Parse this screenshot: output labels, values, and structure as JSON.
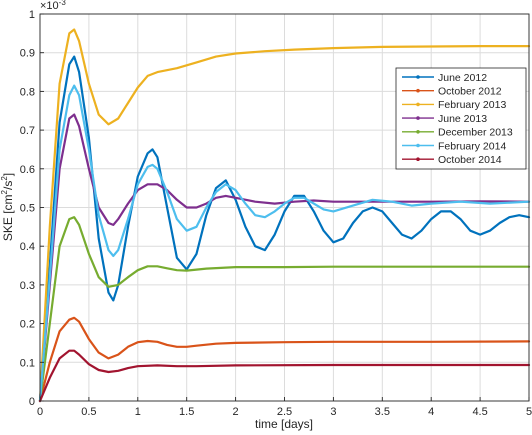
{
  "chart_data": {
    "type": "line",
    "xlabel": "time [days]",
    "ylabel_main": "SKE [cm",
    "ylabel_sup1": "2",
    "ylabel_mid": "/s",
    "ylabel_sup2": "2",
    "ylabel_end": "]",
    "y_multiplier": "×10",
    "y_multiplier_exp": "-3",
    "xlim": [
      0,
      5
    ],
    "ylim": [
      0,
      1
    ],
    "x_ticks": [
      "0",
      "0.5",
      "1",
      "1.5",
      "2",
      "2.5",
      "3",
      "3.5",
      "4",
      "4.5",
      "5"
    ],
    "y_ticks": [
      "0",
      "0.1",
      "0.2",
      "0.3",
      "0.4",
      "0.5",
      "0.6",
      "0.7",
      "0.8",
      "0.9",
      "1"
    ],
    "grid": true,
    "legend_position": "top-right",
    "series": [
      {
        "name": "June 2012",
        "color": "#0072BD",
        "points": [
          [
            0,
            0
          ],
          [
            0.1,
            0.35
          ],
          [
            0.2,
            0.72
          ],
          [
            0.3,
            0.87
          ],
          [
            0.35,
            0.89
          ],
          [
            0.4,
            0.85
          ],
          [
            0.5,
            0.68
          ],
          [
            0.6,
            0.42
          ],
          [
            0.7,
            0.28
          ],
          [
            0.75,
            0.26
          ],
          [
            0.8,
            0.3
          ],
          [
            0.9,
            0.45
          ],
          [
            1.0,
            0.58
          ],
          [
            1.1,
            0.64
          ],
          [
            1.15,
            0.65
          ],
          [
            1.2,
            0.63
          ],
          [
            1.3,
            0.5
          ],
          [
            1.4,
            0.37
          ],
          [
            1.5,
            0.34
          ],
          [
            1.6,
            0.38
          ],
          [
            1.7,
            0.48
          ],
          [
            1.8,
            0.55
          ],
          [
            1.9,
            0.57
          ],
          [
            2.0,
            0.52
          ],
          [
            2.1,
            0.45
          ],
          [
            2.2,
            0.4
          ],
          [
            2.3,
            0.39
          ],
          [
            2.4,
            0.43
          ],
          [
            2.5,
            0.49
          ],
          [
            2.6,
            0.53
          ],
          [
            2.7,
            0.53
          ],
          [
            2.8,
            0.49
          ],
          [
            2.9,
            0.44
          ],
          [
            3.0,
            0.41
          ],
          [
            3.1,
            0.42
          ],
          [
            3.2,
            0.46
          ],
          [
            3.3,
            0.49
          ],
          [
            3.4,
            0.5
          ],
          [
            3.5,
            0.49
          ],
          [
            3.6,
            0.46
          ],
          [
            3.7,
            0.43
          ],
          [
            3.8,
            0.42
          ],
          [
            3.9,
            0.44
          ],
          [
            4.0,
            0.47
          ],
          [
            4.1,
            0.49
          ],
          [
            4.2,
            0.49
          ],
          [
            4.3,
            0.47
          ],
          [
            4.4,
            0.44
          ],
          [
            4.5,
            0.43
          ],
          [
            4.6,
            0.44
          ],
          [
            4.7,
            0.46
          ],
          [
            4.8,
            0.475
          ],
          [
            4.9,
            0.48
          ],
          [
            5.0,
            0.475
          ]
        ]
      },
      {
        "name": "October 2012",
        "color": "#D95319",
        "points": [
          [
            0,
            0
          ],
          [
            0.1,
            0.1
          ],
          [
            0.2,
            0.18
          ],
          [
            0.3,
            0.21
          ],
          [
            0.35,
            0.215
          ],
          [
            0.4,
            0.205
          ],
          [
            0.5,
            0.16
          ],
          [
            0.6,
            0.125
          ],
          [
            0.7,
            0.11
          ],
          [
            0.8,
            0.12
          ],
          [
            0.9,
            0.14
          ],
          [
            1.0,
            0.152
          ],
          [
            1.1,
            0.155
          ],
          [
            1.2,
            0.153
          ],
          [
            1.3,
            0.145
          ],
          [
            1.4,
            0.14
          ],
          [
            1.5,
            0.14
          ],
          [
            1.6,
            0.143
          ],
          [
            1.8,
            0.148
          ],
          [
            2.0,
            0.15
          ],
          [
            2.5,
            0.152
          ],
          [
            3.0,
            0.153
          ],
          [
            4.0,
            0.153
          ],
          [
            5.0,
            0.154
          ]
        ]
      },
      {
        "name": "February 2013",
        "color": "#EDB120",
        "points": [
          [
            0,
            0
          ],
          [
            0.1,
            0.45
          ],
          [
            0.2,
            0.82
          ],
          [
            0.3,
            0.95
          ],
          [
            0.35,
            0.96
          ],
          [
            0.4,
            0.93
          ],
          [
            0.5,
            0.82
          ],
          [
            0.6,
            0.74
          ],
          [
            0.7,
            0.715
          ],
          [
            0.8,
            0.73
          ],
          [
            0.9,
            0.77
          ],
          [
            1.0,
            0.81
          ],
          [
            1.1,
            0.84
          ],
          [
            1.2,
            0.85
          ],
          [
            1.4,
            0.86
          ],
          [
            1.6,
            0.875
          ],
          [
            1.8,
            0.89
          ],
          [
            2.0,
            0.898
          ],
          [
            2.3,
            0.904
          ],
          [
            2.6,
            0.908
          ],
          [
            3.0,
            0.912
          ],
          [
            3.5,
            0.915
          ],
          [
            4.0,
            0.916
          ],
          [
            4.5,
            0.917
          ],
          [
            5.0,
            0.917
          ]
        ]
      },
      {
        "name": "June 2013",
        "color": "#7E2F8E",
        "points": [
          [
            0,
            0
          ],
          [
            0.1,
            0.3
          ],
          [
            0.2,
            0.6
          ],
          [
            0.3,
            0.73
          ],
          [
            0.35,
            0.74
          ],
          [
            0.4,
            0.71
          ],
          [
            0.5,
            0.6
          ],
          [
            0.6,
            0.5
          ],
          [
            0.7,
            0.46
          ],
          [
            0.75,
            0.455
          ],
          [
            0.8,
            0.47
          ],
          [
            0.9,
            0.51
          ],
          [
            1.0,
            0.545
          ],
          [
            1.1,
            0.56
          ],
          [
            1.2,
            0.56
          ],
          [
            1.3,
            0.545
          ],
          [
            1.4,
            0.52
          ],
          [
            1.5,
            0.5
          ],
          [
            1.6,
            0.5
          ],
          [
            1.7,
            0.51
          ],
          [
            1.8,
            0.525
          ],
          [
            1.9,
            0.53
          ],
          [
            2.0,
            0.525
          ],
          [
            2.2,
            0.515
          ],
          [
            2.4,
            0.51
          ],
          [
            2.6,
            0.515
          ],
          [
            2.8,
            0.518
          ],
          [
            3.0,
            0.515
          ],
          [
            3.5,
            0.515
          ],
          [
            4.0,
            0.515
          ],
          [
            4.5,
            0.516
          ],
          [
            5.0,
            0.515
          ]
        ]
      },
      {
        "name": "December 2013",
        "color": "#77AC30",
        "points": [
          [
            0,
            0
          ],
          [
            0.1,
            0.2
          ],
          [
            0.2,
            0.4
          ],
          [
            0.3,
            0.47
          ],
          [
            0.35,
            0.475
          ],
          [
            0.4,
            0.455
          ],
          [
            0.5,
            0.38
          ],
          [
            0.6,
            0.32
          ],
          [
            0.7,
            0.295
          ],
          [
            0.8,
            0.3
          ],
          [
            0.9,
            0.32
          ],
          [
            1.0,
            0.338
          ],
          [
            1.1,
            0.348
          ],
          [
            1.2,
            0.348
          ],
          [
            1.3,
            0.343
          ],
          [
            1.4,
            0.338
          ],
          [
            1.5,
            0.337
          ],
          [
            1.7,
            0.342
          ],
          [
            2.0,
            0.346
          ],
          [
            2.5,
            0.346
          ],
          [
            3.0,
            0.347
          ],
          [
            4.0,
            0.347
          ],
          [
            5.0,
            0.347
          ]
        ]
      },
      {
        "name": "February 2014",
        "color": "#4DBEEE",
        "points": [
          [
            0,
            0
          ],
          [
            0.1,
            0.32
          ],
          [
            0.2,
            0.65
          ],
          [
            0.3,
            0.79
          ],
          [
            0.35,
            0.815
          ],
          [
            0.4,
            0.79
          ],
          [
            0.5,
            0.65
          ],
          [
            0.6,
            0.48
          ],
          [
            0.7,
            0.39
          ],
          [
            0.75,
            0.375
          ],
          [
            0.8,
            0.39
          ],
          [
            0.9,
            0.47
          ],
          [
            1.0,
            0.56
          ],
          [
            1.1,
            0.605
          ],
          [
            1.15,
            0.61
          ],
          [
            1.2,
            0.6
          ],
          [
            1.3,
            0.54
          ],
          [
            1.4,
            0.47
          ],
          [
            1.5,
            0.44
          ],
          [
            1.6,
            0.45
          ],
          [
            1.7,
            0.5
          ],
          [
            1.8,
            0.54
          ],
          [
            1.9,
            0.56
          ],
          [
            2.0,
            0.545
          ],
          [
            2.1,
            0.51
          ],
          [
            2.2,
            0.48
          ],
          [
            2.3,
            0.475
          ],
          [
            2.4,
            0.49
          ],
          [
            2.5,
            0.51
          ],
          [
            2.6,
            0.525
          ],
          [
            2.7,
            0.525
          ],
          [
            2.8,
            0.51
          ],
          [
            2.9,
            0.495
          ],
          [
            3.0,
            0.49
          ],
          [
            3.2,
            0.505
          ],
          [
            3.4,
            0.52
          ],
          [
            3.6,
            0.515
          ],
          [
            3.8,
            0.505
          ],
          [
            4.0,
            0.51
          ],
          [
            4.3,
            0.515
          ],
          [
            4.6,
            0.51
          ],
          [
            5.0,
            0.515
          ]
        ]
      },
      {
        "name": "October 2014",
        "color": "#A2142F",
        "points": [
          [
            0,
            0
          ],
          [
            0.1,
            0.06
          ],
          [
            0.2,
            0.11
          ],
          [
            0.3,
            0.13
          ],
          [
            0.35,
            0.13
          ],
          [
            0.4,
            0.12
          ],
          [
            0.5,
            0.095
          ],
          [
            0.6,
            0.08
          ],
          [
            0.7,
            0.075
          ],
          [
            0.8,
            0.078
          ],
          [
            0.9,
            0.085
          ],
          [
            1.0,
            0.09
          ],
          [
            1.2,
            0.092
          ],
          [
            1.4,
            0.09
          ],
          [
            1.6,
            0.09
          ],
          [
            2.0,
            0.092
          ],
          [
            3.0,
            0.093
          ],
          [
            4.0,
            0.093
          ],
          [
            5.0,
            0.093
          ]
        ]
      }
    ]
  }
}
